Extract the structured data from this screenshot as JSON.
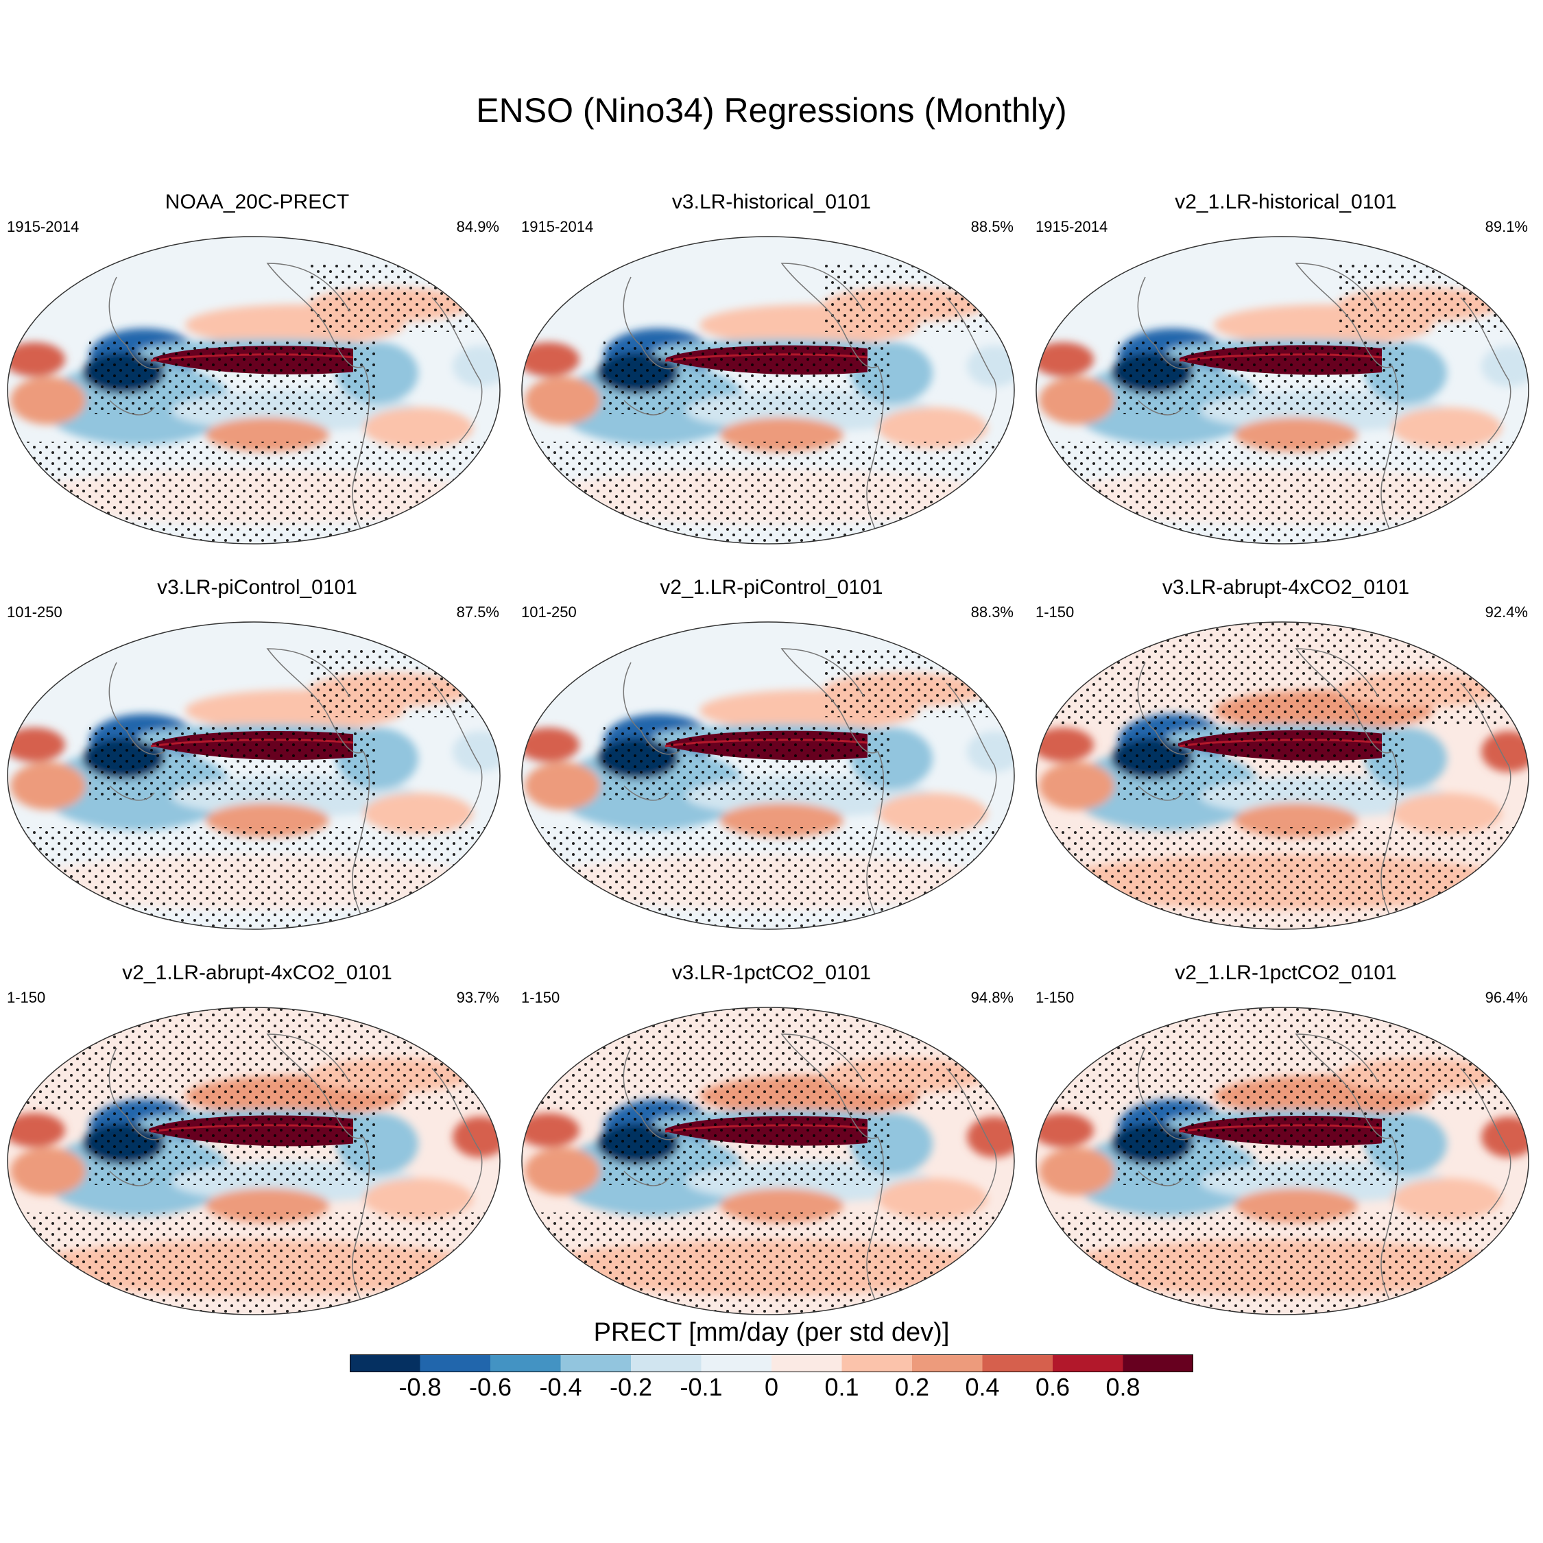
{
  "title": "ENSO (Nino34) Regressions (Monthly)",
  "panels": [
    {
      "title": "NOAA_20C-PRECT",
      "period": "1915-2014",
      "pct": "84.9%",
      "warm": 0.35,
      "strength": 0.85
    },
    {
      "title": "v3.LR-historical_0101",
      "period": "1915-2014",
      "pct": "88.5%",
      "warm": 0.3,
      "strength": 0.95
    },
    {
      "title": "v2_1.LR-historical_0101",
      "period": "1915-2014",
      "pct": "89.1%",
      "warm": 0.3,
      "strength": 1.0
    },
    {
      "title": "v3.LR-piControl_0101",
      "period": "101-250",
      "pct": "87.5%",
      "warm": 0.3,
      "strength": 0.9
    },
    {
      "title": "v2_1.LR-piControl_0101",
      "period": "101-250",
      "pct": "88.3%",
      "warm": 0.3,
      "strength": 0.95
    },
    {
      "title": "v3.LR-abrupt-4xCO2_0101",
      "period": "1-150",
      "pct": "92.4%",
      "warm": 0.6,
      "strength": 1.1
    },
    {
      "title": "v2_1.LR-abrupt-4xCO2_0101",
      "period": "1-150",
      "pct": "93.7%",
      "warm": 0.65,
      "strength": 1.15
    },
    {
      "title": "v3.LR-1pctCO2_0101",
      "period": "1-150",
      "pct": "94.8%",
      "warm": 0.7,
      "strength": 1.0
    },
    {
      "title": "v2_1.LR-1pctCO2_0101",
      "period": "1-150",
      "pct": "96.4%",
      "warm": 0.8,
      "strength": 1.05
    }
  ],
  "colorbar": {
    "title": "PRECT [mm/day (per std dev)]",
    "colors": [
      "#053061",
      "#2166ac",
      "#4393c3",
      "#92c5de",
      "#d1e5f0",
      "#eaf2f7",
      "#fbeae4",
      "#fbc3ab",
      "#ed9b7c",
      "#d6604d",
      "#b2182b",
      "#67001f"
    ],
    "labels": [
      "-0.8",
      "-0.6",
      "-0.4",
      "-0.2",
      "-0.1",
      "0",
      "0.1",
      "0.2",
      "0.4",
      "0.6",
      "0.8"
    ]
  }
}
